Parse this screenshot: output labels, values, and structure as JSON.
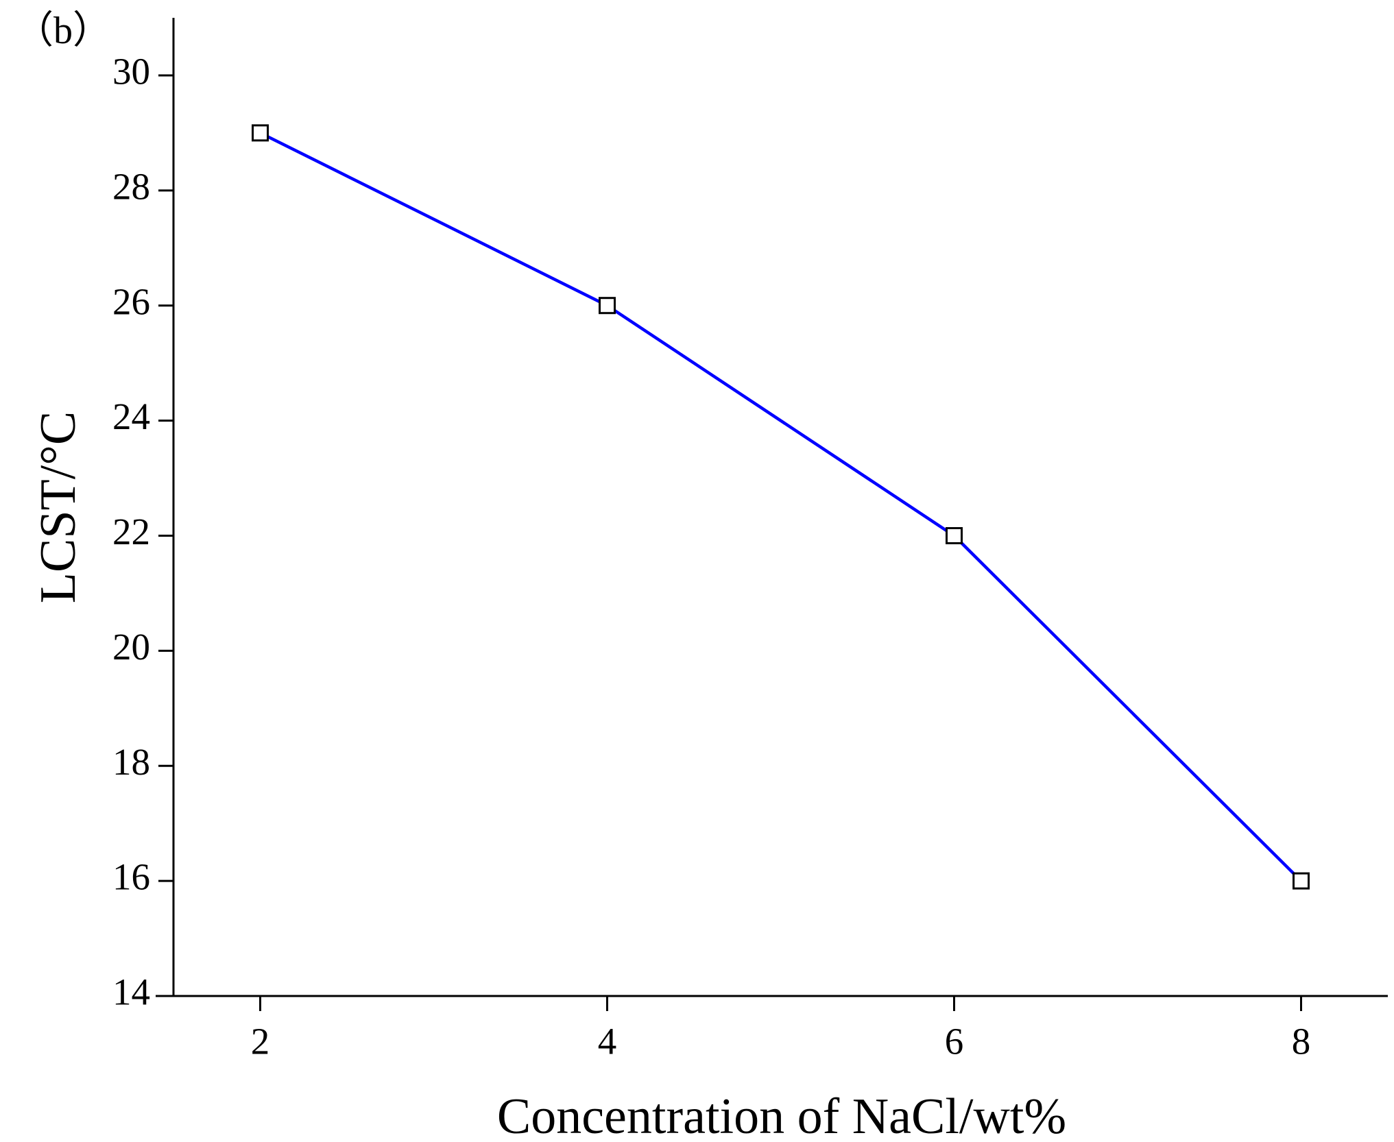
{
  "chart_data": {
    "type": "line",
    "label": "（b）",
    "x_label": "Concentration of NaCl/wt%",
    "y_label": "LCST/°C",
    "x": [
      2,
      4,
      6,
      8
    ],
    "series": [
      {
        "color": "#0000ff",
        "values": [
          29,
          26,
          22,
          16
        ]
      }
    ],
    "xlim": [
      1.5,
      8.5
    ],
    "ylim": [
      14,
      31
    ],
    "xticks": [
      2,
      4,
      6,
      8
    ],
    "yticks": [
      14,
      16,
      18,
      20,
      22,
      24,
      26,
      28,
      30
    ]
  }
}
